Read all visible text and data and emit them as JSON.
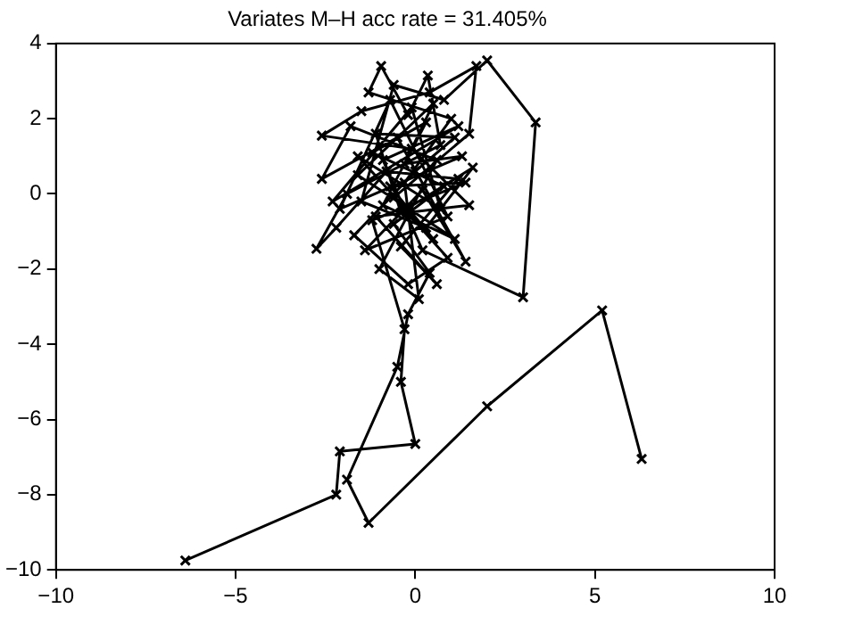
{
  "chart_data": {
    "type": "line",
    "title": "Variates M–H acc rate = 31.405%",
    "color": "#000000",
    "marker": "cross",
    "line_style": "solid",
    "grid": false,
    "legend": false,
    "xlim": [
      -10,
      10
    ],
    "xticks": [
      -10,
      -5,
      0,
      5,
      10
    ],
    "ylim": [
      -10,
      4
    ],
    "yticks": [
      -10,
      -8,
      -6,
      -4,
      -2,
      0,
      2,
      4
    ],
    "x": [
      6.3,
      5.2,
      2.0,
      -1.3,
      -1.9,
      -0.5,
      -0.2,
      0.4,
      -0.6,
      0.8,
      -1.2,
      0.3,
      -0.9,
      1.1,
      -1.6,
      0.5,
      -0.3,
      1.3,
      -2.1,
      -0.7,
      0.9,
      -1.4,
      0.2,
      1.4,
      -0.5,
      -2.6,
      -1.8,
      0.6,
      -1.0,
      0.1,
      -0.3,
      1.0,
      -1.3,
      -0.95,
      -0.2,
      0.35,
      0.7,
      -1.9,
      -2.75,
      -2.2,
      -0.8,
      1.2,
      -0.4,
      0.6,
      -1.1,
      1.5,
      -0.1,
      -2.6,
      -1.5,
      0.4,
      1.7,
      1.5,
      -0.6,
      0.9,
      -0.2,
      -1.7,
      0.0,
      1.1,
      -1.1,
      -0.4,
      1.6,
      0.3,
      -1.5,
      -0.6,
      0.8,
      2.0,
      3.35,
      3.0,
      0.2,
      -0.9,
      1.2,
      -2.3,
      -0.1,
      0.7,
      -1.6,
      0.5,
      -0.7,
      1.4,
      -1.2,
      -0.3,
      -0.4,
      0.0,
      -2.1,
      -2.2,
      -6.4
    ],
    "values": [
      -7.05,
      -3.1,
      -5.65,
      -8.75,
      -7.6,
      -4.6,
      -3.2,
      -2.1,
      -0.8,
      0.2,
      1.1,
      1.9,
      -0.3,
      -1.2,
      0.5,
      2.4,
      0.8,
      1.0,
      -0.4,
      2.5,
      -0.6,
      -1.5,
      0.1,
      -1.8,
      1.5,
      0.4,
      1.8,
      0.9,
      -2.0,
      -2.8,
      0.3,
      2.0,
      2.7,
      3.4,
      2.1,
      3.15,
      1.3,
      0.0,
      -1.46,
      -0.9,
      0.6,
      0.4,
      -1.4,
      -2.4,
      -0.6,
      -0.3,
      1.2,
      1.55,
      2.2,
      2.7,
      3.4,
      1.6,
      -0.1,
      -1.7,
      -2.4,
      -1.1,
      0.6,
      1.5,
      1.6,
      -0.5,
      0.7,
      -0.9,
      -0.2,
      2.9,
      2.5,
      3.55,
      1.9,
      -2.75,
      -1.5,
      0.9,
      1.8,
      -0.2,
      2.3,
      -0.4,
      1.0,
      -1.2,
      0.2,
      0.3,
      -0.7,
      -3.6,
      -5.0,
      -6.65,
      -6.85,
      -8.0,
      -9.75
    ]
  }
}
